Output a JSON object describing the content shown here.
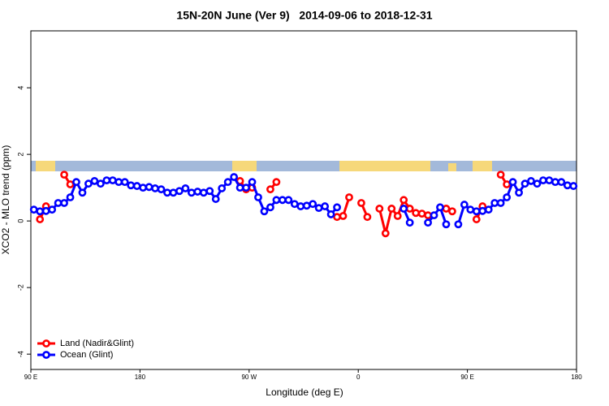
{
  "chart_data": {
    "type": "line",
    "title": "15N-20N June (Ver 9)   2014-09-06 to 2018-12-31",
    "xlabel": "Longitude (deg E)",
    "ylabel": "XCO2 - MLO trend (ppm)",
    "xlim": [
      90,
      540
    ],
    "ylim": [
      -4.46,
      5.71
    ],
    "xticks": [
      {
        "value": 90,
        "label": "90 E"
      },
      180,
      {
        "value": 270,
        "label": "90 W"
      },
      {
        "value": 360,
        "label": "0"
      },
      {
        "value": 450,
        "label": "90 E"
      },
      {
        "value": 540,
        "label": "180"
      }
    ],
    "yticks": [
      -4,
      -2,
      0,
      2,
      4
    ],
    "legend": "bottom-left",
    "series": [
      {
        "name": "Land (Nadir&Glint)",
        "color": "#ff0000",
        "x": [
          97.5,
          102.5,
          null,
          117.5,
          122.5,
          null,
          262.5,
          267.5,
          272.5,
          null,
          287.5,
          292.5,
          null,
          342.5,
          347.5,
          352.5,
          null,
          362.5,
          367.5,
          null,
          377.5,
          382.5,
          387.5,
          392.5,
          397.5,
          402.5,
          407.5,
          412.5,
          417.5,
          null,
          432.5,
          437.5,
          null,
          457.5,
          462.5,
          null,
          477.5,
          482.5
        ],
        "values": [
          0.05,
          0.44,
          null,
          1.39,
          1.1,
          null,
          1.2,
          0.95,
          1.0,
          null,
          0.95,
          1.17,
          null,
          0.12,
          0.15,
          0.71,
          null,
          0.54,
          0.12,
          null,
          0.37,
          -0.37,
          0.37,
          0.15,
          0.63,
          0.37,
          0.24,
          0.22,
          0.17,
          null,
          0.37,
          0.29,
          null,
          0.05,
          0.44,
          null,
          1.39,
          1.1
        ]
      },
      {
        "name": "Ocean (Glint)",
        "color": "#0000ff",
        "x": [
          92.5,
          97.5,
          102.5,
          107.5,
          112.5,
          117.5,
          122.5,
          127.5,
          132.5,
          137.5,
          142.5,
          147.5,
          152.5,
          157.5,
          162.5,
          167.5,
          172.5,
          177.5,
          182.5,
          187.5,
          192.5,
          197.5,
          202.5,
          207.5,
          212.5,
          217.5,
          222.5,
          227.5,
          232.5,
          237.5,
          242.5,
          247.5,
          252.5,
          257.5,
          262.5,
          267.5,
          272.5,
          277.5,
          282.5,
          287.5,
          292.5,
          297.5,
          302.5,
          307.5,
          312.5,
          317.5,
          322.5,
          327.5,
          332.5,
          337.5,
          342.5,
          null,
          397.5,
          402.5,
          null,
          417.5,
          422.5,
          427.5,
          432.5,
          null,
          442.5,
          447.5,
          452.5,
          457.5,
          462.5,
          467.5,
          472.5,
          477.5,
          482.5,
          487.5,
          492.5,
          497.5,
          502.5,
          507.5,
          512.5,
          517.5,
          522.5,
          527.5,
          532.5,
          537.5
        ],
        "values": [
          0.34,
          0.29,
          0.3,
          0.34,
          0.54,
          0.54,
          0.71,
          1.17,
          0.85,
          1.12,
          1.2,
          1.12,
          1.22,
          1.22,
          1.17,
          1.17,
          1.07,
          1.05,
          1.0,
          1.02,
          0.98,
          0.95,
          0.85,
          0.85,
          0.9,
          0.98,
          0.85,
          0.88,
          0.85,
          0.9,
          0.66,
          0.98,
          1.17,
          1.32,
          1.0,
          1.0,
          1.17,
          0.71,
          0.29,
          0.41,
          0.63,
          0.63,
          0.63,
          0.51,
          0.44,
          0.46,
          0.51,
          0.39,
          0.44,
          0.2,
          0.41,
          null,
          0.37,
          -0.05,
          null,
          -0.05,
          0.17,
          0.41,
          -0.1,
          null,
          -0.1,
          0.49,
          0.34,
          0.29,
          0.3,
          0.34,
          0.54,
          0.54,
          0.71,
          1.17,
          0.85,
          1.12,
          1.2,
          1.12,
          1.22,
          1.22,
          1.17,
          1.17,
          1.07,
          1.05
        ]
      }
    ]
  }
}
